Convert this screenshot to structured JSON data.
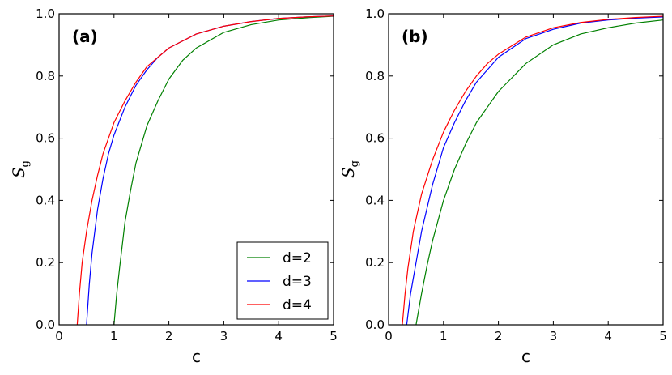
{
  "chart_data": [
    {
      "type": "line",
      "panel_label": "(a)",
      "xlabel": "c",
      "ylabel_main": "S",
      "ylabel_sub": "g",
      "xlim": [
        0,
        5
      ],
      "ylim": [
        0,
        1
      ],
      "xticks": [
        "0",
        "1",
        "2",
        "3",
        "4",
        "5"
      ],
      "yticks": [
        "0.0",
        "0.2",
        "0.4",
        "0.6",
        "0.8",
        "1.0"
      ],
      "grid": false,
      "legend": "bottom-right",
      "series": [
        {
          "name": "d=2",
          "color": "#008000",
          "x": [
            1.0,
            1.05,
            1.1,
            1.2,
            1.3,
            1.4,
            1.5,
            1.6,
            1.8,
            2.0,
            2.25,
            2.5,
            3.0,
            3.5,
            4.0,
            4.5,
            5.0
          ],
          "y": [
            0.0,
            0.1,
            0.18,
            0.33,
            0.43,
            0.52,
            0.58,
            0.64,
            0.72,
            0.79,
            0.85,
            0.89,
            0.94,
            0.965,
            0.98,
            0.987,
            0.992
          ]
        },
        {
          "name": "d=3",
          "color": "#0000ff",
          "x": [
            0.5,
            0.55,
            0.6,
            0.7,
            0.8,
            0.9,
            1.0,
            1.2,
            1.4,
            1.6,
            1.8,
            2.0,
            2.5,
            3.0,
            3.5,
            4.0,
            4.5,
            5.0
          ],
          "y": [
            0.0,
            0.13,
            0.23,
            0.37,
            0.47,
            0.55,
            0.61,
            0.7,
            0.77,
            0.82,
            0.86,
            0.89,
            0.935,
            0.96,
            0.975,
            0.985,
            0.99,
            0.993
          ]
        },
        {
          "name": "d=4",
          "color": "#ff0000",
          "x": [
            0.33,
            0.37,
            0.42,
            0.5,
            0.6,
            0.7,
            0.8,
            0.9,
            1.0,
            1.2,
            1.4,
            1.6,
            1.8,
            2.0,
            2.5,
            3.0,
            3.5,
            4.0,
            4.5,
            5.0
          ],
          "y": [
            0.0,
            0.1,
            0.2,
            0.3,
            0.4,
            0.48,
            0.55,
            0.6,
            0.65,
            0.72,
            0.78,
            0.83,
            0.86,
            0.89,
            0.935,
            0.96,
            0.975,
            0.985,
            0.99,
            0.993
          ]
        }
      ]
    },
    {
      "type": "line",
      "panel_label": "(b)",
      "xlabel": "c",
      "ylabel_main": "S",
      "ylabel_sub": "g",
      "xlim": [
        0,
        5
      ],
      "ylim": [
        0,
        1
      ],
      "xticks": [
        "0",
        "1",
        "2",
        "3",
        "4",
        "5"
      ],
      "yticks": [
        "0.0",
        "0.2",
        "0.4",
        "0.6",
        "0.8",
        "1.0"
      ],
      "grid": false,
      "legend": "none",
      "series": [
        {
          "name": "d=2",
          "color": "#008000",
          "x": [
            0.5,
            0.6,
            0.7,
            0.8,
            1.0,
            1.2,
            1.4,
            1.6,
            1.8,
            2.0,
            2.5,
            3.0,
            3.5,
            4.0,
            4.5,
            5.0
          ],
          "y": [
            0.0,
            0.1,
            0.19,
            0.27,
            0.4,
            0.5,
            0.58,
            0.65,
            0.7,
            0.75,
            0.84,
            0.9,
            0.935,
            0.955,
            0.97,
            0.98
          ]
        },
        {
          "name": "d=3",
          "color": "#0000ff",
          "x": [
            0.33,
            0.4,
            0.5,
            0.6,
            0.8,
            1.0,
            1.2,
            1.4,
            1.6,
            1.8,
            2.0,
            2.5,
            3.0,
            3.5,
            4.0,
            4.5,
            5.0
          ],
          "y": [
            0.0,
            0.1,
            0.2,
            0.3,
            0.45,
            0.57,
            0.65,
            0.72,
            0.78,
            0.82,
            0.86,
            0.92,
            0.95,
            0.97,
            0.98,
            0.986,
            0.99
          ]
        },
        {
          "name": "d=4",
          "color": "#ff0000",
          "x": [
            0.25,
            0.3,
            0.35,
            0.45,
            0.6,
            0.8,
            1.0,
            1.2,
            1.4,
            1.6,
            1.8,
            2.0,
            2.5,
            3.0,
            3.5,
            4.0,
            4.5,
            5.0
          ],
          "y": [
            0.0,
            0.1,
            0.18,
            0.3,
            0.42,
            0.53,
            0.62,
            0.69,
            0.75,
            0.8,
            0.84,
            0.87,
            0.925,
            0.955,
            0.972,
            0.982,
            0.988,
            0.992
          ]
        }
      ]
    }
  ]
}
